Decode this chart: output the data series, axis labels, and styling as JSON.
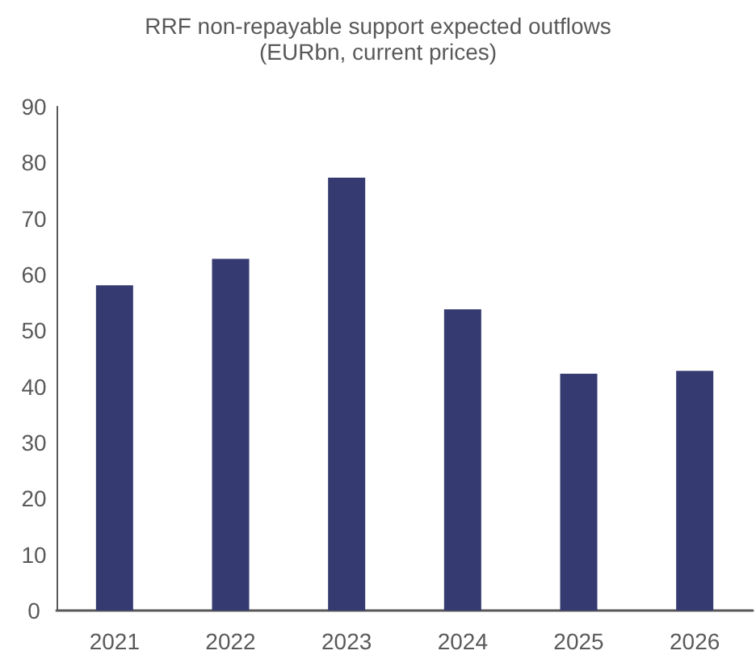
{
  "chart_data": {
    "type": "bar",
    "title": "RRF non-repayable support expected outflows",
    "subtitle": "(EURbn, current prices)",
    "categories": [
      "2021",
      "2022",
      "2023",
      "2024",
      "2025",
      "2026"
    ],
    "values": [
      58.1,
      62.8,
      77.3,
      53.8,
      42.3,
      42.8
    ],
    "color": "#353b70",
    "ylim": [
      0,
      90
    ],
    "yticks": [
      0,
      10,
      20,
      30,
      40,
      50,
      60,
      70,
      80,
      90
    ],
    "grid": false
  }
}
